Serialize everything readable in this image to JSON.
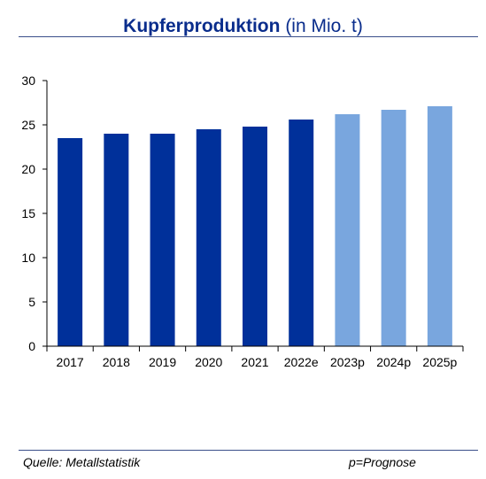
{
  "title": {
    "main": "Kupferproduktion",
    "unit": "(in Mio. t)"
  },
  "footer": {
    "source": "Quelle: Metallstatistik",
    "note": "p=Prognose"
  },
  "colors": {
    "actual": "#00309a",
    "forecast": "#79a6de",
    "title": "#0a2d8c",
    "axis": "#000000"
  },
  "chart_data": {
    "type": "bar",
    "title": "Kupferproduktion (in Mio. t)",
    "categories": [
      "2017",
      "2018",
      "2019",
      "2020",
      "2021",
      "2022e",
      "2023p",
      "2024p",
      "2025p"
    ],
    "values": [
      23.5,
      24.0,
      24.0,
      24.5,
      24.8,
      25.6,
      26.2,
      26.7,
      27.1
    ],
    "forecast": [
      false,
      false,
      false,
      false,
      false,
      false,
      true,
      true,
      true
    ],
    "ylim": [
      0,
      30
    ],
    "yticks": [
      0,
      5,
      10,
      15,
      20,
      25,
      30
    ],
    "grid": false,
    "legend": "none"
  }
}
